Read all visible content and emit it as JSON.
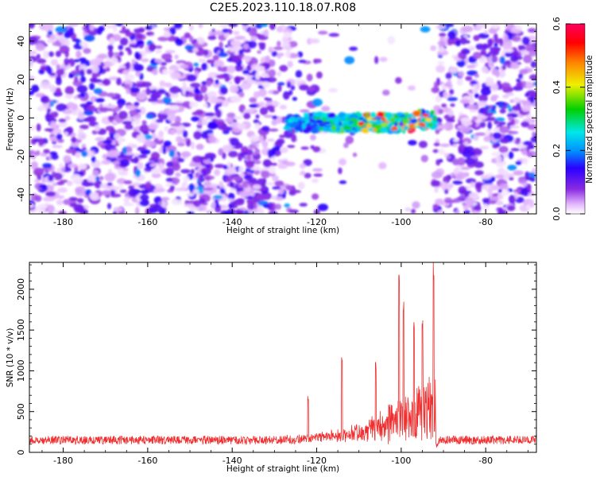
{
  "figure_title": "C2E5.2023.110.18.07.R08",
  "chart_data": [
    {
      "type": "heatmap",
      "xlabel": "Height of straight line (km)",
      "ylabel": "Frequency (Hz)",
      "xlim": [
        -188,
        -68
      ],
      "ylim": [
        -50,
        49
      ],
      "xticks": [
        "-180",
        "-160",
        "-140",
        "-120",
        "-100",
        "-80"
      ],
      "yticks": [
        "-40",
        "-20",
        "0",
        "20",
        "40"
      ],
      "colorbar": {
        "label": "Normalized spectral amplitude",
        "range": [
          0.0,
          0.6
        ],
        "ticks": [
          "0.0",
          "0.2",
          "0.4",
          "0.6"
        ],
        "colormap": [
          "#ffffff",
          "#e4b8ff",
          "#8a2be2",
          "#2a00ff",
          "#0090ff",
          "#00e8e8",
          "#00d000",
          "#f0f000",
          "#ff8000",
          "#ff0000",
          "#ff0060"
        ]
      },
      "features": {
        "noise_gap_km": [
          -119,
          -92
        ],
        "signal_band_km": [
          -127,
          -92
        ],
        "signal_band_hz": [
          -7,
          2
        ],
        "peak_km": [
          -109,
          -94
        ]
      },
      "grid": false
    },
    {
      "type": "line",
      "xlabel": "Height of straight line (km)",
      "ylabel": "SNR (10 * v/v)",
      "xlim": [
        -188,
        -68
      ],
      "ylim": [
        0,
        2330
      ],
      "xticks": [
        "-180",
        "-160",
        "-140",
        "-120",
        "-100",
        "-80"
      ],
      "yticks": [
        "0",
        "500",
        "1000",
        "1500",
        "2000"
      ],
      "line_color": "#f03030",
      "baseline": 150,
      "peaks": [
        {
          "x": -122,
          "y": 690
        },
        {
          "x": -114,
          "y": 1200
        },
        {
          "x": -106,
          "y": 1120
        },
        {
          "x": -100.5,
          "y": 2230
        },
        {
          "x": -99.5,
          "y": 1900
        },
        {
          "x": -97,
          "y": 1640
        },
        {
          "x": -95,
          "y": 1640
        },
        {
          "x": -92.3,
          "y": 2330
        }
      ],
      "grid": false
    }
  ]
}
